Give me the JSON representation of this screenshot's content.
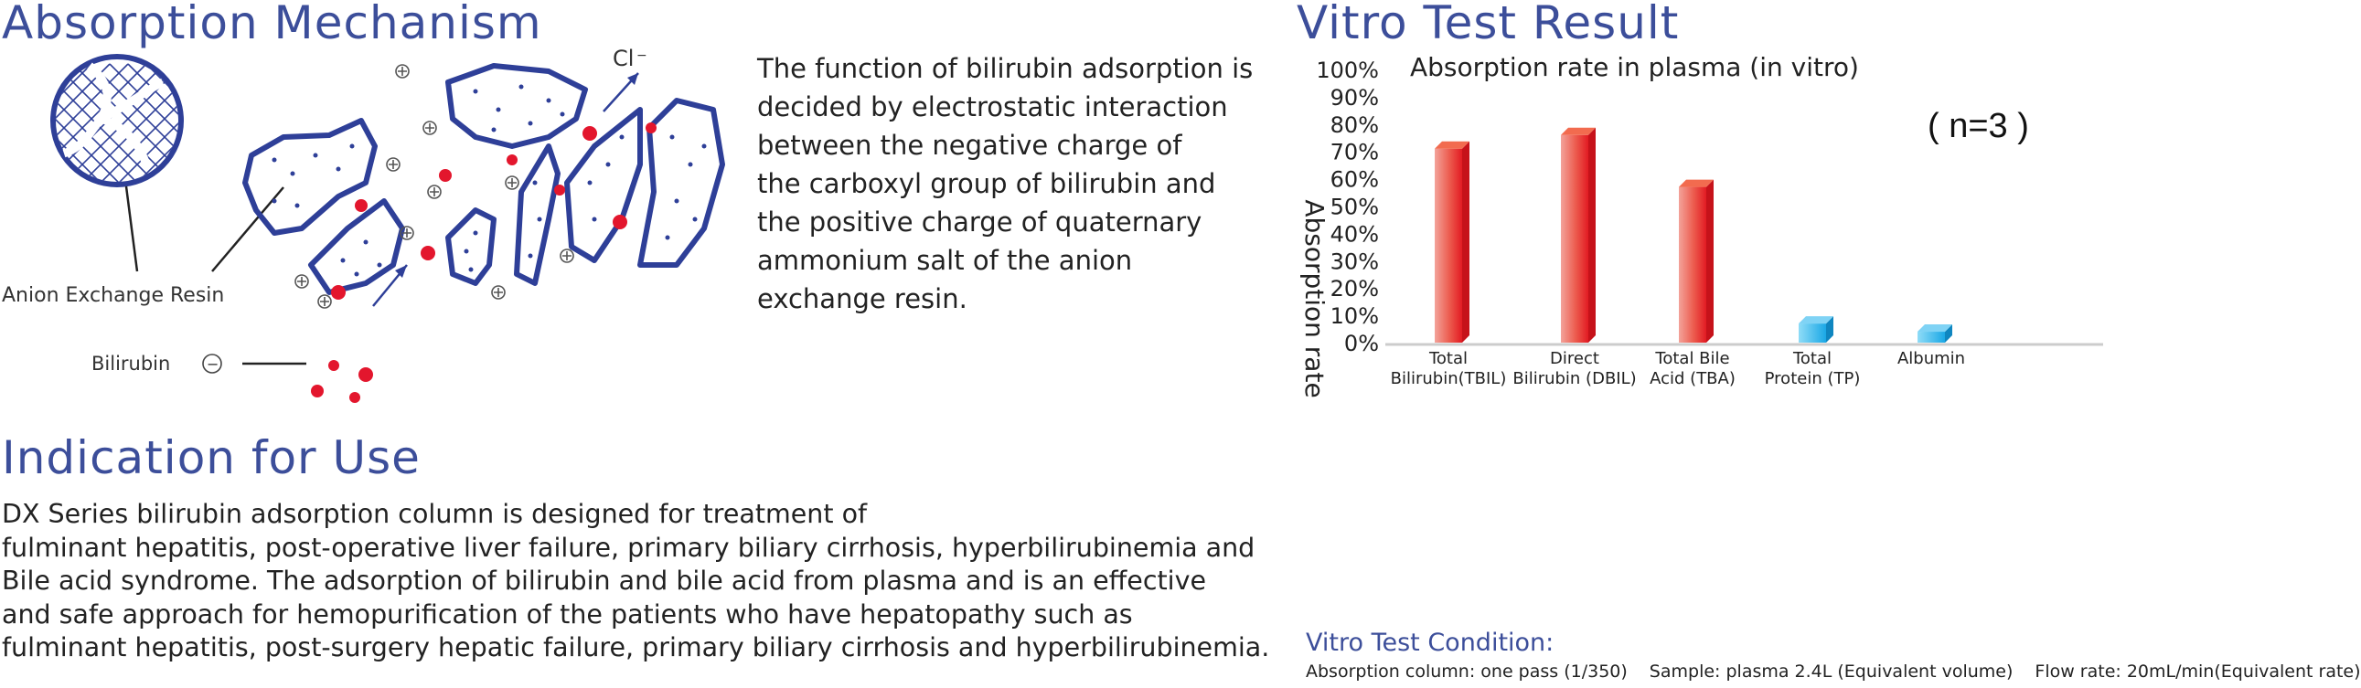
{
  "left": {
    "mechanism_title": "Absorption Mechanism",
    "mechanism_text": [
      "The function of bilirubin adsorption is",
      "decided by electrostatic interaction",
      "between the negative charge of",
      "the carboxyl group of bilirubin and",
      "the positive charge of quaternary",
      "ammonium salt of the anion",
      "exchange resin."
    ],
    "diagram": {
      "resin_label": "Anion Exchange Resin",
      "bilirubin_label": "Bilirubin",
      "bilirubin_charge": "−",
      "chloride_label": "Cl",
      "chloride_charge": "−",
      "resin_color": "#2e3f98",
      "bilirubin_color": "#e3162d"
    },
    "indication_title": "Indication for Use",
    "indication_text": [
      "DX Series bilirubin adsorption column is designed for treatment of",
      "fulminant hepatitis, post-operative liver failure, primary biliary cirrhosis, hyperbilirubinemia and",
      "Bile acid syndrome. The adsorption of bilirubin and bile acid from plasma and is an effective",
      "and safe approach for hemopurification of the patients who have hepatopathy such as",
      "fulminant hepatitis, post-surgery hepatic failure, primary biliary cirrhosis and hyperbilirubinemia."
    ]
  },
  "right": {
    "section_title": "Vitro Test Result",
    "condition_title": "Vitro Test Condition:",
    "conditions": [
      "Absorption column: one pass (1/350)",
      "Sample: plasma 2.4L (Equivalent volume)",
      "Flow rate: 20mL/min(Equivalent rate)"
    ]
  },
  "chart_data": {
    "type": "bar",
    "title": "Absorption rate in plasma (in vitro)",
    "annotation": "( n=3 )",
    "ylabel": "Absorption rate",
    "xlabel": "",
    "ylim": [
      0,
      100
    ],
    "yticks": [
      "0%",
      "10%",
      "20%",
      "30%",
      "40%",
      "50%",
      "60%",
      "70%",
      "80%",
      "90%",
      "100%"
    ],
    "categories": [
      [
        "Total",
        "Bilirubin(TBIL)"
      ],
      [
        "Direct",
        "Bilirubin (DBIL)"
      ],
      [
        "Total Bile",
        "Acid (TBA)"
      ],
      [
        "Total",
        "Protein (TP)"
      ],
      [
        "Albumin"
      ]
    ],
    "values": [
      71,
      76,
      57,
      7,
      4
    ],
    "bar_colors": [
      "#e8262c",
      "#e8262c",
      "#e8262c",
      "#1aa8e6",
      "#1aa8e6"
    ],
    "grid": false,
    "legend": "none"
  }
}
